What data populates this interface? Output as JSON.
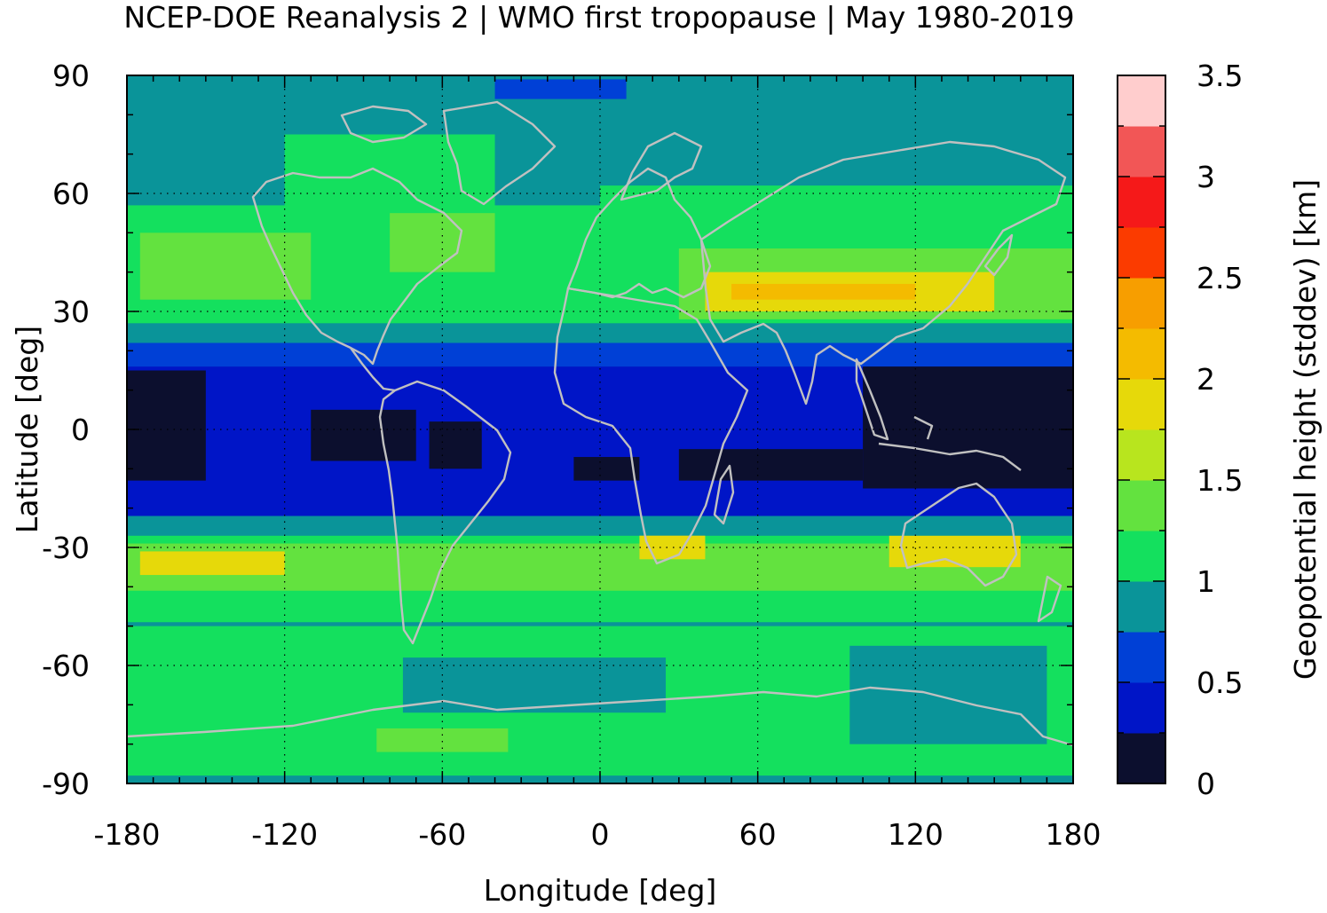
{
  "chart_data": {
    "type": "heatmap",
    "title": "NCEP-DOE Reanalysis 2 | WMO first tropopause | May 1980-2019",
    "xlabel": "Longitude [deg]",
    "ylabel": "Latitude [deg]",
    "colorbar_label": "Geopotential height (stddev) [km]",
    "xlim": [
      -180,
      180
    ],
    "ylim": [
      -90,
      90
    ],
    "x_ticks": [
      -180,
      -120,
      -60,
      0,
      60,
      120,
      180
    ],
    "x_tick_labels": [
      "-180",
      "-120",
      "-60",
      "0",
      "60",
      "120",
      "180"
    ],
    "y_ticks": [
      90,
      60,
      30,
      0,
      -30,
      -60,
      -90
    ],
    "y_tick_labels": [
      "90",
      "60",
      "30",
      "0",
      "-30",
      "-60",
      "-90"
    ],
    "grid": true,
    "colorbar_range": [
      0,
      3.5
    ],
    "colorbar_ticks": [
      3.5,
      3,
      2.5,
      2,
      1.5,
      1,
      0.5,
      0
    ],
    "colorbar_tick_labels": [
      "3.5",
      "3",
      "2.5",
      "2",
      "1.5",
      "1",
      "0.5",
      "0"
    ],
    "colorbar_colors": [
      "#0c0f2e",
      "#0015c7",
      "#0040d6",
      "#0a9499",
      "#14e05e",
      "#63e23f",
      "#b8e51e",
      "#e6d90a",
      "#f4bb00",
      "#f79e00",
      "#fb3b00",
      "#f51919",
      "#f25656",
      "#ffcdcd"
    ],
    "coastline_color": "#c0c0c0",
    "regions": [
      {
        "lon": [
          -180,
          180
        ],
        "lat": [
          -90,
          90
        ],
        "value": 0.9
      },
      {
        "lon": [
          -180,
          180
        ],
        "lat": [
          -88,
          -50
        ],
        "value": 1.1
      },
      {
        "lon": [
          -140,
          -40
        ],
        "lat": [
          -84,
          -73
        ],
        "value": 1.2
      },
      {
        "lon": [
          -85,
          -35
        ],
        "lat": [
          -82,
          -76
        ],
        "value": 1.4
      },
      {
        "lon": [
          -75,
          25
        ],
        "lat": [
          -72,
          -58
        ],
        "value": 0.9
      },
      {
        "lon": [
          95,
          170
        ],
        "lat": [
          -80,
          -55
        ],
        "value": 0.9
      },
      {
        "lon": [
          -180,
          180
        ],
        "lat": [
          -49,
          -27
        ],
        "value": 1.1
      },
      {
        "lon": [
          -180,
          180
        ],
        "lat": [
          -41,
          -29
        ],
        "value": 1.4
      },
      {
        "lon": [
          -175,
          -120
        ],
        "lat": [
          -37,
          -31
        ],
        "value": 1.75
      },
      {
        "lon": [
          15,
          40
        ],
        "lat": [
          -33,
          -26
        ],
        "value": 1.75
      },
      {
        "lon": [
          110,
          160
        ],
        "lat": [
          -35,
          -27
        ],
        "value": 1.9
      },
      {
        "lon": [
          -180,
          180
        ],
        "lat": [
          -27,
          -22
        ],
        "value": 0.75
      },
      {
        "lon": [
          -180,
          180
        ],
        "lat": [
          -22,
          16
        ],
        "value": 0.45
      },
      {
        "lon": [
          -180,
          -150
        ],
        "lat": [
          -13,
          15
        ],
        "value": 0.1
      },
      {
        "lon": [
          100,
          180
        ],
        "lat": [
          -15,
          16
        ],
        "value": 0.1
      },
      {
        "lon": [
          -110,
          -70
        ],
        "lat": [
          -8,
          5
        ],
        "value": 0.1
      },
      {
        "lon": [
          -65,
          -45
        ],
        "lat": [
          -10,
          2
        ],
        "value": 0.1
      },
      {
        "lon": [
          -10,
          15
        ],
        "lat": [
          -13,
          -7
        ],
        "value": 0.1
      },
      {
        "lon": [
          30,
          100
        ],
        "lat": [
          -13,
          -5
        ],
        "value": 0.1
      },
      {
        "lon": [
          -180,
          180
        ],
        "lat": [
          16,
          22
        ],
        "value": 0.5
      },
      {
        "lon": [
          -180,
          180
        ],
        "lat": [
          22,
          27
        ],
        "value": 0.75
      },
      {
        "lon": [
          -180,
          180
        ],
        "lat": [
          27,
          57
        ],
        "value": 1.1
      },
      {
        "lon": [
          -175,
          -110
        ],
        "lat": [
          33,
          50
        ],
        "value": 1.3
      },
      {
        "lon": [
          -80,
          -40
        ],
        "lat": [
          40,
          58
        ],
        "value": 1.3
      },
      {
        "lon": [
          30,
          180
        ],
        "lat": [
          28,
          46
        ],
        "value": 1.4
      },
      {
        "lon": [
          40,
          150
        ],
        "lat": [
          30,
          40
        ],
        "value": 1.85
      },
      {
        "lon": [
          50,
          120
        ],
        "lat": [
          33,
          37
        ],
        "value": 2.1
      },
      {
        "lon": [
          -180,
          180
        ],
        "lat": [
          57,
          90
        ],
        "value": 0.9
      },
      {
        "lon": [
          -120,
          -40
        ],
        "lat": [
          55,
          75
        ],
        "value": 1.1
      },
      {
        "lon": [
          0,
          180
        ],
        "lat": [
          53,
          62
        ],
        "value": 1.1
      },
      {
        "lon": [
          -40,
          10
        ],
        "lat": [
          84,
          89
        ],
        "value": 0.6
      }
    ]
  }
}
